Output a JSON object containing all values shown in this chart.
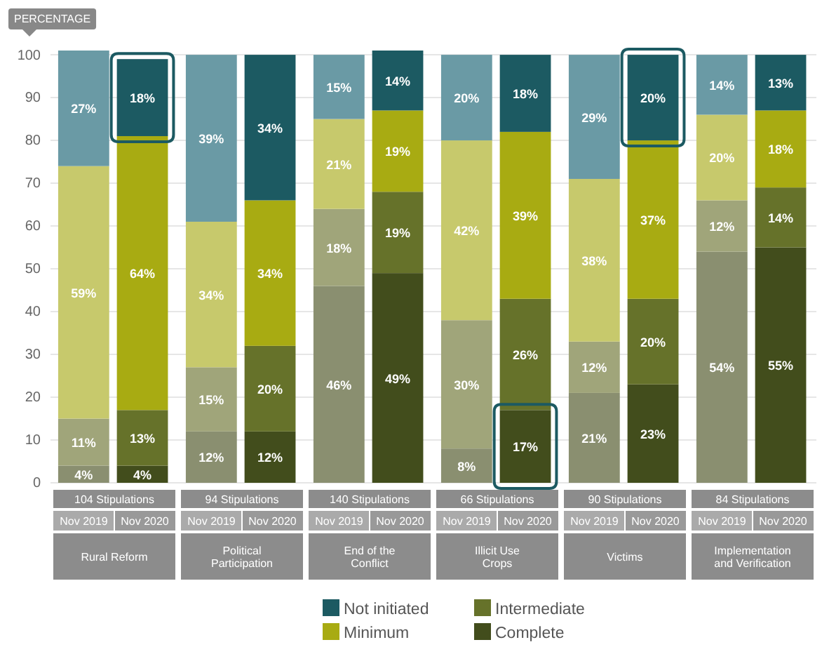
{
  "chart_data": {
    "type": "bar",
    "stacked": true,
    "ylabel": "PERCENTAGE",
    "categories": [
      "Nov 2019",
      "Nov 2020",
      "Nov 2019",
      "Nov 2020",
      "Nov 2019",
      "Nov 2020",
      "Nov 2019",
      "Nov 2020",
      "Nov 2019",
      "Nov 2020",
      "Nov 2019",
      "Nov 2020"
    ],
    "series": [
      {
        "name": "Complete",
        "color": "#424d1c",
        "colors": [
          "#8a8f70",
          "#424d1c",
          "#8a8f70",
          "#424d1c",
          "#8a8f70",
          "#424d1c",
          "#8a8f70",
          "#424d1c",
          "#8a8f70",
          "#424d1c",
          "#8a8f70",
          "#424d1c"
        ],
        "values": [
          4,
          4,
          12,
          12,
          46,
          49,
          8,
          17,
          21,
          23,
          54,
          55
        ],
        "value_labels": [
          "4%",
          "4%",
          "12%",
          "12%",
          "46%",
          "49%",
          "8%",
          "17%",
          "21%",
          "23%",
          "54%",
          "55%"
        ]
      },
      {
        "name": "Intermediate",
        "color": "#66722a",
        "colors": [
          "#a0a57a",
          "#66722a",
          "#a0a57a",
          "#66722a",
          "#a0a57a",
          "#66722a",
          "#a0a57a",
          "#66722a",
          "#a0a57a",
          "#66722a",
          "#a0a57a",
          "#66722a"
        ],
        "values": [
          11,
          13,
          15,
          20,
          18,
          19,
          30,
          26,
          12,
          20,
          12,
          14
        ],
        "value_labels": [
          "11%",
          "13%",
          "15%",
          "20%",
          "18%",
          "19%",
          "30%",
          "26%",
          "12%",
          "20%",
          "12%",
          "14%"
        ]
      },
      {
        "name": "Minimum",
        "color": "#a8ab12",
        "colors": [
          "#c7c96c",
          "#a8ab12",
          "#c7c96c",
          "#a8ab12",
          "#c7c96c",
          "#a8ab12",
          "#c7c96c",
          "#a8ab12",
          "#c7c96c",
          "#a8ab12",
          "#c7c96c",
          "#a8ab12"
        ],
        "values": [
          59,
          64,
          34,
          34,
          21,
          19,
          42,
          39,
          38,
          37,
          20,
          18
        ],
        "value_labels": [
          "59%",
          "64%",
          "34%",
          "34%",
          "21%",
          "19%",
          "42%",
          "39%",
          "38%",
          "37%",
          "20%",
          "18%"
        ]
      },
      {
        "name": "Not initiated",
        "color": "#1c5a62",
        "colors": [
          "#6a9aa5",
          "#1c5a62",
          "#6a9aa5",
          "#1c5a62",
          "#6a9aa5",
          "#1c5a62",
          "#6a9aa5",
          "#1c5a62",
          "#6a9aa5",
          "#1c5a62",
          "#6a9aa5",
          "#1c5a62"
        ],
        "values": [
          27,
          18,
          39,
          34,
          15,
          14,
          20,
          18,
          29,
          20,
          14,
          13
        ],
        "value_labels": [
          "27%",
          "18%",
          "39%",
          "34%",
          "15%",
          "14%",
          "20%",
          "18%",
          "29%",
          "20%",
          "14%",
          "13%"
        ]
      }
    ],
    "ylim": [
      0,
      101
    ],
    "yticks": [
      0,
      10,
      20,
      30,
      40,
      50,
      60,
      70,
      80,
      90,
      100
    ],
    "grid": "y",
    "legend": "bottom",
    "annotations": [
      "104 Stipulations",
      "94 Stipulations",
      "140 Stipulations",
      "66 Stipulations",
      "90 Stipulations",
      "84 Stipulations",
      "Rural Reform",
      "Political Participation",
      "End of the Conflict",
      "Illicit Use Crops",
      "Victims",
      "Implementation and Verification"
    ]
  }
}
